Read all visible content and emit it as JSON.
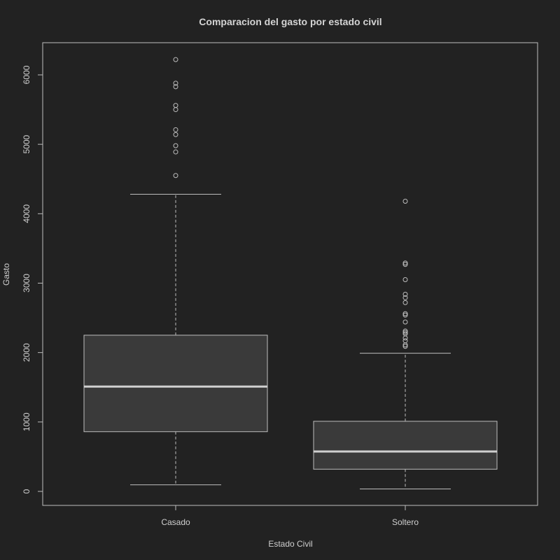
{
  "chart_data": {
    "type": "boxplot",
    "title": "Comparacion del gasto por estado civil",
    "xlabel": "Estado Civil",
    "ylabel": "Gasto",
    "ylim": [
      -200,
      6450
    ],
    "yticks": [
      0,
      1000,
      2000,
      3000,
      4000,
      5000,
      6000
    ],
    "categories": [
      "Casado",
      "Soltero"
    ],
    "boxes": [
      {
        "name": "Casado",
        "whisker_low": 95,
        "q1": 860,
        "median": 1510,
        "q3": 2250,
        "whisker_high": 4280,
        "outliers": [
          4550,
          4890,
          4980,
          5140,
          5210,
          5500,
          5560,
          5830,
          5880,
          6220
        ]
      },
      {
        "name": "Soltero",
        "whisker_low": 35,
        "q1": 320,
        "median": 575,
        "q3": 1010,
        "whisker_high": 1990,
        "outliers": [
          2090,
          2110,
          2170,
          2210,
          2270,
          2290,
          2310,
          2440,
          2540,
          2560,
          2720,
          2790,
          2840,
          3050,
          3270,
          3290,
          4180
        ]
      }
    ],
    "grid": false,
    "legend": "none"
  }
}
